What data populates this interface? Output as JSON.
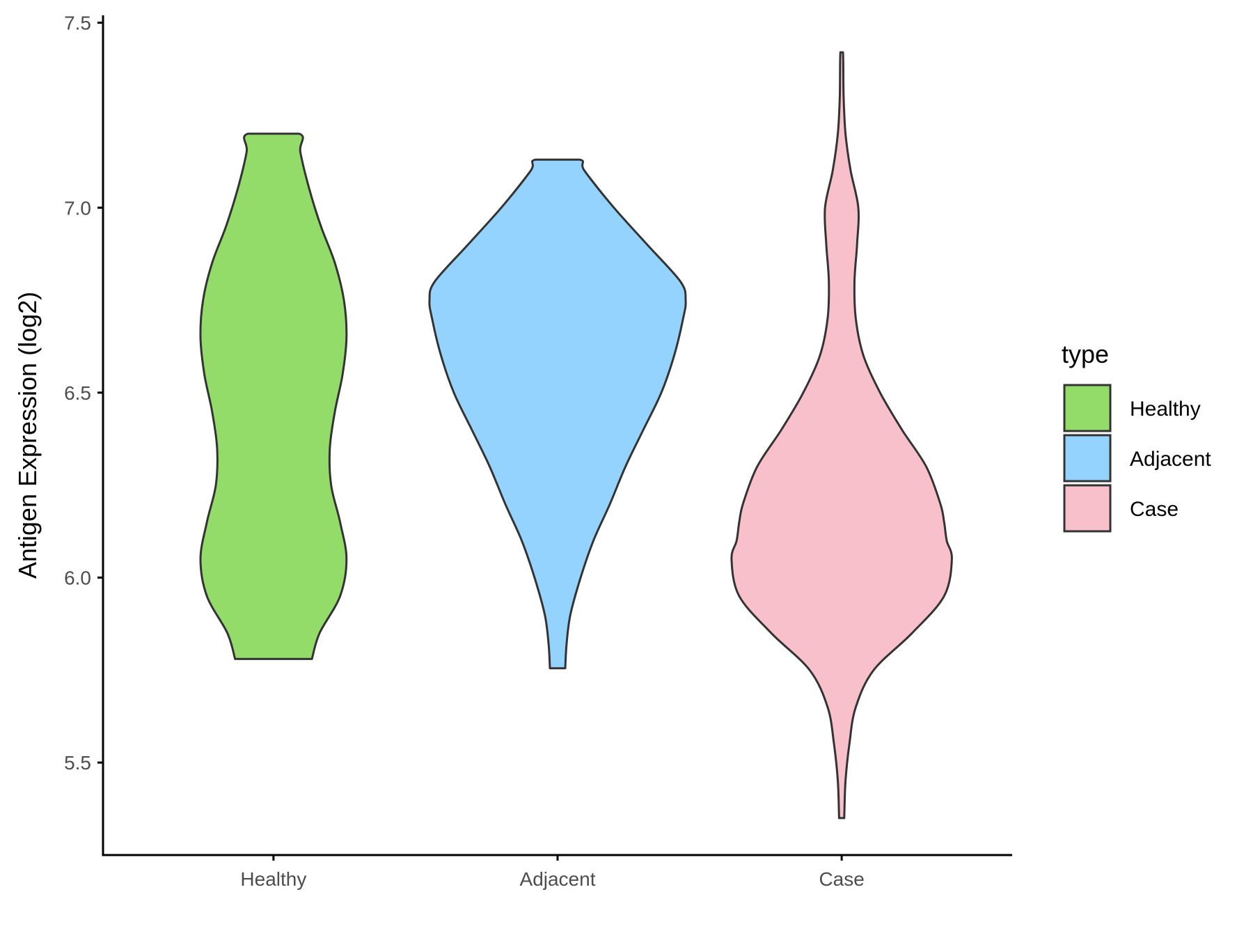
{
  "chart_data": {
    "type": "violin",
    "title": "",
    "xlabel": "",
    "ylabel": "Antigen Expression (log2)",
    "ylim": [
      5.25,
      7.52
    ],
    "yticks": [
      "5.5",
      "6.0",
      "6.5",
      "7.0",
      "7.5"
    ],
    "ytick_values": [
      5.5,
      6.0,
      6.5,
      7.0,
      7.5
    ],
    "categories": [
      "Healthy",
      "Adjacent",
      "Case"
    ],
    "grid": false,
    "legend": {
      "title": "type",
      "position": "right",
      "entries": [
        "Healthy",
        "Adjacent",
        "Case"
      ]
    },
    "colors": {
      "Healthy": "#93dc69",
      "Adjacent": "#93d3fe",
      "Case": "#f7c0cb",
      "outline": "#333333"
    },
    "series": [
      {
        "name": "Healthy",
        "profile": [
          [
            5.78,
            0.3
          ],
          [
            5.85,
            0.36
          ],
          [
            5.95,
            0.52
          ],
          [
            6.05,
            0.57
          ],
          [
            6.15,
            0.52
          ],
          [
            6.25,
            0.45
          ],
          [
            6.35,
            0.44
          ],
          [
            6.45,
            0.48
          ],
          [
            6.55,
            0.54
          ],
          [
            6.65,
            0.57
          ],
          [
            6.75,
            0.55
          ],
          [
            6.85,
            0.48
          ],
          [
            6.95,
            0.37
          ],
          [
            7.05,
            0.28
          ],
          [
            7.15,
            0.21
          ],
          [
            7.2,
            0.2
          ]
        ]
      },
      {
        "name": "Adjacent",
        "profile": [
          [
            5.755,
            0.06
          ],
          [
            5.82,
            0.07
          ],
          [
            5.9,
            0.1
          ],
          [
            6.0,
            0.18
          ],
          [
            6.1,
            0.28
          ],
          [
            6.2,
            0.41
          ],
          [
            6.3,
            0.53
          ],
          [
            6.4,
            0.67
          ],
          [
            6.5,
            0.81
          ],
          [
            6.6,
            0.91
          ],
          [
            6.7,
            0.98
          ],
          [
            6.75,
            1.0
          ],
          [
            6.8,
            0.96
          ],
          [
            6.9,
            0.7
          ],
          [
            7.0,
            0.44
          ],
          [
            7.1,
            0.21
          ],
          [
            7.13,
            0.17
          ]
        ]
      },
      {
        "name": "Case",
        "profile": [
          [
            5.35,
            0.02
          ],
          [
            5.45,
            0.03
          ],
          [
            5.55,
            0.06
          ],
          [
            5.65,
            0.11
          ],
          [
            5.75,
            0.25
          ],
          [
            5.85,
            0.55
          ],
          [
            5.95,
            0.8
          ],
          [
            6.05,
            0.86
          ],
          [
            6.1,
            0.82
          ],
          [
            6.15,
            0.8
          ],
          [
            6.2,
            0.77
          ],
          [
            6.3,
            0.66
          ],
          [
            6.4,
            0.47
          ],
          [
            6.5,
            0.3
          ],
          [
            6.6,
            0.17
          ],
          [
            6.7,
            0.11
          ],
          [
            6.8,
            0.1
          ],
          [
            6.9,
            0.12
          ],
          [
            7.0,
            0.13
          ],
          [
            7.1,
            0.07
          ],
          [
            7.2,
            0.03
          ],
          [
            7.3,
            0.015
          ],
          [
            7.42,
            0.01
          ]
        ]
      }
    ]
  }
}
